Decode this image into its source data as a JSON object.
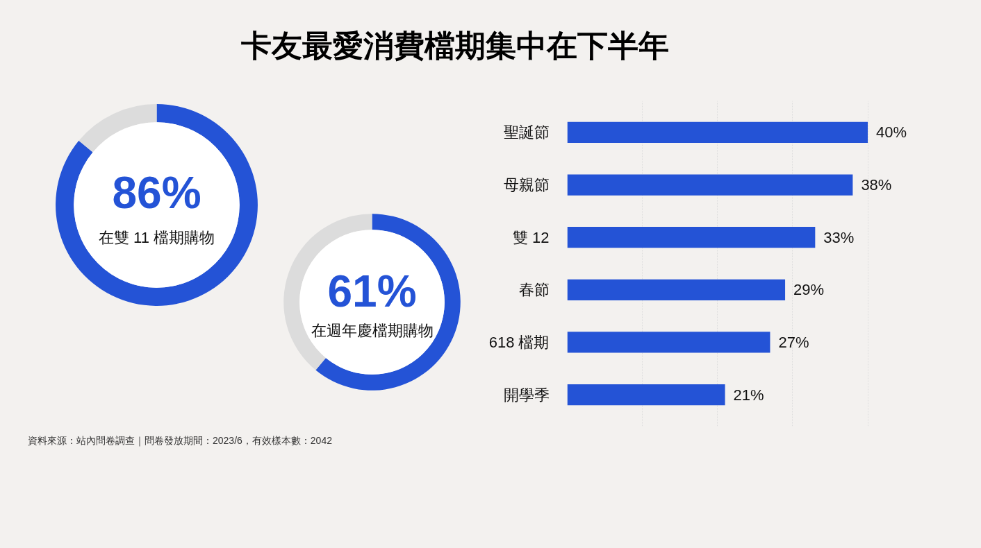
{
  "chart_data": [
    {
      "type": "donut",
      "title": "卡友最愛消費檔期集中在下半年",
      "categories": [
        null,
        null
      ],
      "values": [
        86,
        14
      ],
      "colors": [
        "#2453d6",
        "#dcdcdc"
      ],
      "value_labels": [
        "86%",
        null
      ],
      "annotations": [
        "在雙 11 檔期購物"
      ]
    },
    {
      "type": "donut",
      "categories": [
        null,
        null
      ],
      "values": [
        61,
        39
      ],
      "colors": [
        "#2453d6",
        "#dcdcdc"
      ],
      "value_labels": [
        "61%",
        null
      ],
      "annotations": [
        "在週年慶檔期購物"
      ]
    },
    {
      "type": "bar",
      "orientation": "horizontal",
      "categories": [
        "聖誕節",
        "母親節",
        "雙 12",
        "春節",
        "618 檔期",
        "開學季"
      ],
      "values": [
        40,
        38,
        33,
        29,
        27,
        21
      ],
      "color": "#2453d6",
      "value_labels": [
        "40%",
        "38%",
        "33%",
        "29%",
        "27%",
        "21%"
      ],
      "grid": "x",
      "tick_labels": "y",
      "annotations": [
        "資料來源：站內問卷調查｜問卷發放期間：2023/6，有效樣本數：2042"
      ]
    }
  ]
}
